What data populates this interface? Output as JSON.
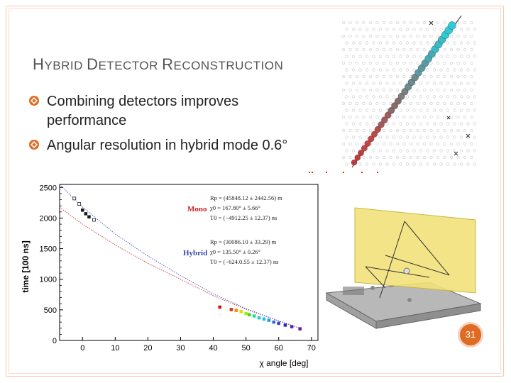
{
  "slide": {
    "title_parts": [
      {
        "text": "H",
        "small": false
      },
      {
        "text": "YBRID ",
        "small": true
      },
      {
        "text": "D",
        "small": false
      },
      {
        "text": "ETECTOR ",
        "small": true
      },
      {
        "text": "R",
        "small": false
      },
      {
        "text": "ECONSTRUCTION",
        "small": true
      }
    ],
    "bullets": [
      {
        "text": "Combining detectors improves performance"
      },
      {
        "text": "Angular resolution in hybrid mode 0.6°"
      }
    ],
    "page_number": "31",
    "accent_color": "#e06b22",
    "bullet_icon": "diamond-bullet-icon"
  },
  "chart_data": {
    "type": "scatter",
    "xlabel": "χ angle [deg]",
    "ylabel": "time [100 ns]",
    "xlim": [
      -7,
      72
    ],
    "ylim": [
      0,
      2550
    ],
    "xticks": [
      0,
      10,
      20,
      30,
      40,
      50,
      60,
      70
    ],
    "yticks": [
      0,
      500,
      1000,
      1500,
      2000,
      2500
    ],
    "series": [
      {
        "name": "Mono",
        "color": "#cc2222",
        "curve_color": "#cc3333",
        "fit_lines": [
          "Rp = (45848.12 ± 2442.56) m",
          "χ0 = 167.80° ± 5.66°",
          "T0 = (−4912.25 ± 12.37) ns"
        ],
        "curve": [
          [
            -7,
            2175
          ],
          [
            0,
            1900
          ],
          [
            10,
            1560
          ],
          [
            20,
            1260
          ],
          [
            30,
            1000
          ],
          [
            40,
            730
          ],
          [
            50,
            510
          ],
          [
            60,
            320
          ],
          [
            67,
            190
          ]
        ]
      },
      {
        "name": "Hybrid",
        "color": "#3344aa",
        "curve_color": "#4455cc",
        "fit_lines": [
          "Rp = (30086.10 ± 33.29) m",
          "χ0 = 135.50° ± 0.26°",
          "T0 = (−624.0.55 ± 12.37) ns"
        ],
        "curve": [
          [
            -7,
            2550
          ],
          [
            0,
            2180
          ],
          [
            10,
            1740
          ],
          [
            20,
            1380
          ],
          [
            30,
            1060
          ],
          [
            40,
            760
          ],
          [
            50,
            520
          ],
          [
            60,
            320
          ],
          [
            67,
            190
          ]
        ]
      }
    ],
    "points": [
      {
        "x": -2.5,
        "y": 2320,
        "c": "#1a1a1a",
        "open": true
      },
      {
        "x": -1.0,
        "y": 2230,
        "c": "#1a1a1a",
        "open": true
      },
      {
        "x": 0.0,
        "y": 2130,
        "c": "#1a1a1a",
        "open": false
      },
      {
        "x": 1.0,
        "y": 2070,
        "c": "#1a1a1a",
        "open": false
      },
      {
        "x": 2.0,
        "y": 2020,
        "c": "#1a1a1a",
        "open": false
      },
      {
        "x": 3.5,
        "y": 1970,
        "c": "#1a1a1a",
        "open": true
      },
      {
        "x": 42.0,
        "y": 545,
        "c": "#cc1111",
        "open": false
      },
      {
        "x": 45.5,
        "y": 505,
        "c": "#dd3311",
        "open": false
      },
      {
        "x": 47.0,
        "y": 490,
        "c": "#ff8800",
        "open": false
      },
      {
        "x": 48.5,
        "y": 470,
        "c": "#dddd00",
        "open": false
      },
      {
        "x": 50.0,
        "y": 440,
        "c": "#99ee11",
        "open": false
      },
      {
        "x": 51.0,
        "y": 420,
        "c": "#33dd33",
        "open": false
      },
      {
        "x": 52.5,
        "y": 400,
        "c": "#22dd99",
        "open": false
      },
      {
        "x": 54.0,
        "y": 370,
        "c": "#22cccc",
        "open": false
      },
      {
        "x": 55.5,
        "y": 350,
        "c": "#22bbee",
        "open": false
      },
      {
        "x": 57.0,
        "y": 330,
        "c": "#2299ee",
        "open": false
      },
      {
        "x": 58.5,
        "y": 300,
        "c": "#3366dd",
        "open": false
      },
      {
        "x": 60.0,
        "y": 280,
        "c": "#3344cc",
        "open": false
      },
      {
        "x": 62.0,
        "y": 250,
        "c": "#2a2aa8",
        "open": false
      },
      {
        "x": 64.0,
        "y": 225,
        "c": "#5522aa",
        "open": false
      },
      {
        "x": 66.5,
        "y": 190,
        "c": "#7711aa",
        "open": false
      }
    ],
    "grid": false
  }
}
